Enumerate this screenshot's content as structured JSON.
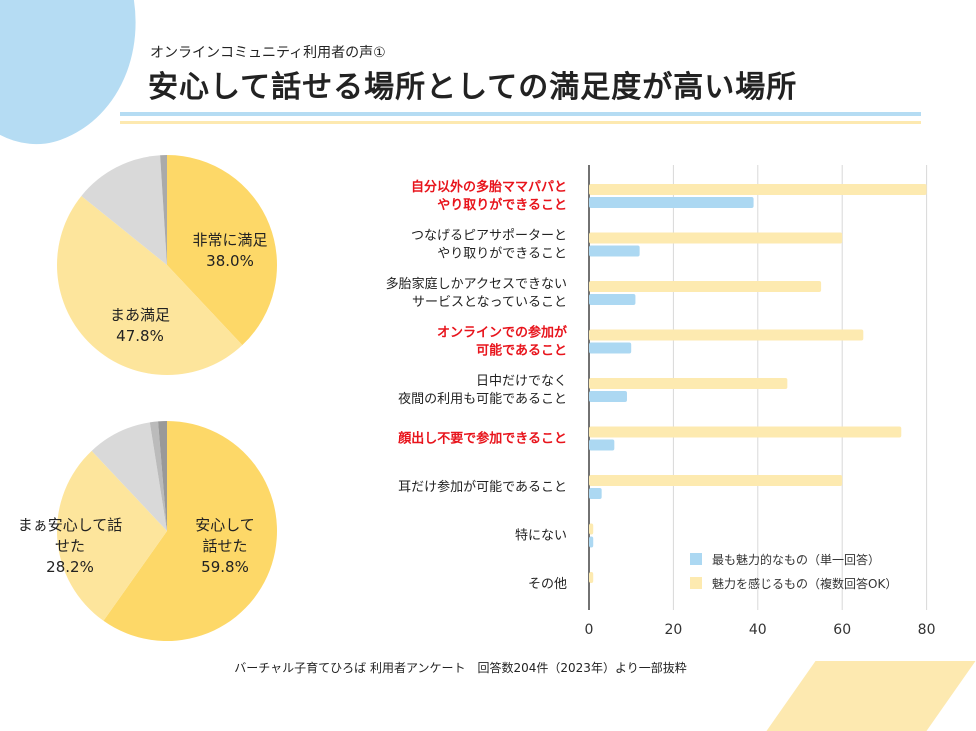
{
  "header": {
    "subtitle": "オンラインコミュニティ利用者の声①",
    "title": "安心して話せる場所としての満足度が高い場所"
  },
  "chart_data": [
    {
      "type": "pie",
      "slices": [
        {
          "label": "非常に満足",
          "value": 38.0,
          "display": "38.0%",
          "color": "#fdd868"
        },
        {
          "label": "まあ満足",
          "value": 47.8,
          "display": "47.8%",
          "color": "#fde59c"
        },
        {
          "label": "",
          "value": 13.2,
          "color": "#d9d9d9"
        },
        {
          "label": "",
          "value": 1.0,
          "color": "#aaaaaa"
        }
      ]
    },
    {
      "type": "pie",
      "slices": [
        {
          "label": "安心して話せた",
          "lines": [
            "安心して",
            "話せた"
          ],
          "value": 59.8,
          "display": "59.8%",
          "color": "#fdd868"
        },
        {
          "label": "まぁ安心して話せた",
          "lines": [
            "まぁ安心して話",
            "せた"
          ],
          "value": 28.2,
          "display": "28.2%",
          "color": "#fde59c"
        },
        {
          "label": "",
          "value": 9.5,
          "color": "#d9d9d9"
        },
        {
          "label": "",
          "value": 1.2,
          "color": "#bbbbbb"
        },
        {
          "label": "",
          "value": 1.3,
          "color": "#999999"
        }
      ]
    },
    {
      "type": "bar",
      "orientation": "horizontal",
      "xlim": [
        0,
        80
      ],
      "xticks": [
        0,
        20,
        40,
        60,
        80
      ],
      "grid": true,
      "legend_position": "bottom-right",
      "categories": [
        {
          "lines": [
            "自分以外の多胎ママパパと",
            "やり取りができること"
          ],
          "highlight": true
        },
        {
          "lines": [
            "つなげるピアサポーターと",
            "やり取りができること"
          ],
          "highlight": false
        },
        {
          "lines": [
            "多胎家庭しかアクセスできない",
            "サービスとなっていること"
          ],
          "highlight": false
        },
        {
          "lines": [
            "オンラインでの参加が",
            "可能であること"
          ],
          "highlight": true
        },
        {
          "lines": [
            "日中だけでなく",
            "夜間の利用も可能であること"
          ],
          "highlight": false
        },
        {
          "lines": [
            "顔出し不要で参加できること"
          ],
          "highlight": true
        },
        {
          "lines": [
            "耳だけ参加が可能であること"
          ],
          "highlight": false
        },
        {
          "lines": [
            "特にない"
          ],
          "highlight": false
        },
        {
          "lines": [
            "その他"
          ],
          "highlight": false
        }
      ],
      "series": [
        {
          "name": "魅力を感じるもの（複数回答OK）",
          "color": "#fdeab0",
          "values": [
            80,
            60,
            55,
            65,
            47,
            74,
            60,
            1,
            1
          ]
        },
        {
          "name": "最も魅力的なもの（単一回答）",
          "color": "#acd8f2",
          "values": [
            39,
            12,
            11,
            10,
            9,
            6,
            3,
            1,
            0
          ]
        }
      ],
      "highlight_color": "#e8141c"
    }
  ],
  "footer": "バーチャル子育てひろば 利用者アンケート　回答数204件（2023年）より一部抜粋"
}
